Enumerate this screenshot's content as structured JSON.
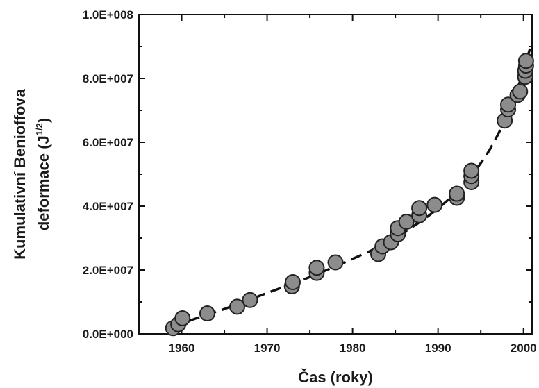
{
  "chart_data": {
    "type": "scatter",
    "title": "",
    "xlabel": "Čas (roky)",
    "ylabel_line1": "Kumulativní Benioffova",
    "ylabel_line2_prefix": "deformace (J",
    "ylabel_line2_sup": "1/2",
    "ylabel_line2_suffix": ")",
    "xlim": [
      1955,
      2001
    ],
    "ylim": [
      0,
      100000000
    ],
    "x_ticks": [
      1960,
      1970,
      1980,
      1990,
      2000
    ],
    "x_tick_labels": [
      "1960",
      "1970",
      "1980",
      "1990",
      "2000"
    ],
    "y_ticks": [
      0,
      20000000,
      40000000,
      60000000,
      80000000,
      100000000
    ],
    "y_tick_labels": [
      "0.0E+000",
      "2.0E+007",
      "4.0E+007",
      "6.0E+007",
      "8.0E+007",
      "1.0E+008"
    ],
    "grid": false,
    "legend": false,
    "marker_fill": "#8c8c8c",
    "marker_stroke": "#222222",
    "line_color": "#111111",
    "points": [
      {
        "x": 1959.0,
        "y": 1800000
      },
      {
        "x": 1959.6,
        "y": 3000000
      },
      {
        "x": 1960.1,
        "y": 4900000
      },
      {
        "x": 1963.0,
        "y": 6400000
      },
      {
        "x": 1966.5,
        "y": 8500000
      },
      {
        "x": 1968.0,
        "y": 10600000
      },
      {
        "x": 1972.9,
        "y": 14900000
      },
      {
        "x": 1973.0,
        "y": 16200000
      },
      {
        "x": 1975.8,
        "y": 19100000
      },
      {
        "x": 1975.8,
        "y": 20700000
      },
      {
        "x": 1978.0,
        "y": 22400000
      },
      {
        "x": 1983.0,
        "y": 25000000
      },
      {
        "x": 1983.5,
        "y": 27400000
      },
      {
        "x": 1984.5,
        "y": 28700000
      },
      {
        "x": 1985.3,
        "y": 31200000
      },
      {
        "x": 1985.3,
        "y": 33100000
      },
      {
        "x": 1986.3,
        "y": 35100000
      },
      {
        "x": 1987.8,
        "y": 37100000
      },
      {
        "x": 1987.8,
        "y": 39400000
      },
      {
        "x": 1989.6,
        "y": 40400000
      },
      {
        "x": 1992.2,
        "y": 42600000
      },
      {
        "x": 1992.2,
        "y": 43900000
      },
      {
        "x": 1993.9,
        "y": 47500000
      },
      {
        "x": 1993.9,
        "y": 49400000
      },
      {
        "x": 1993.9,
        "y": 51100000
      },
      {
        "x": 1997.8,
        "y": 66800000
      },
      {
        "x": 1998.2,
        "y": 70300000
      },
      {
        "x": 1998.2,
        "y": 71800000
      },
      {
        "x": 1999.3,
        "y": 74800000
      },
      {
        "x": 1999.6,
        "y": 75900000
      },
      {
        "x": 2000.2,
        "y": 80500000
      },
      {
        "x": 2000.2,
        "y": 82400000
      },
      {
        "x": 2000.3,
        "y": 84000000
      },
      {
        "x": 2000.3,
        "y": 85500000
      }
    ],
    "fit_curve": [
      {
        "x": 1959.0,
        "y": 1800000
      },
      {
        "x": 1961.0,
        "y": 4200000
      },
      {
        "x": 1965.0,
        "y": 7800000
      },
      {
        "x": 1970.0,
        "y": 12800000
      },
      {
        "x": 1975.0,
        "y": 17800000
      },
      {
        "x": 1980.0,
        "y": 23500000
      },
      {
        "x": 1983.0,
        "y": 27200000
      },
      {
        "x": 1986.0,
        "y": 31800000
      },
      {
        "x": 1989.0,
        "y": 37200000
      },
      {
        "x": 1992.0,
        "y": 44000000
      },
      {
        "x": 1994.0,
        "y": 50000000
      },
      {
        "x": 1996.0,
        "y": 57500000
      },
      {
        "x": 1998.0,
        "y": 67800000
      },
      {
        "x": 1999.0,
        "y": 74500000
      },
      {
        "x": 2000.0,
        "y": 82500000
      },
      {
        "x": 2000.5,
        "y": 87000000
      },
      {
        "x": 2001.0,
        "y": 91500000
      }
    ]
  }
}
